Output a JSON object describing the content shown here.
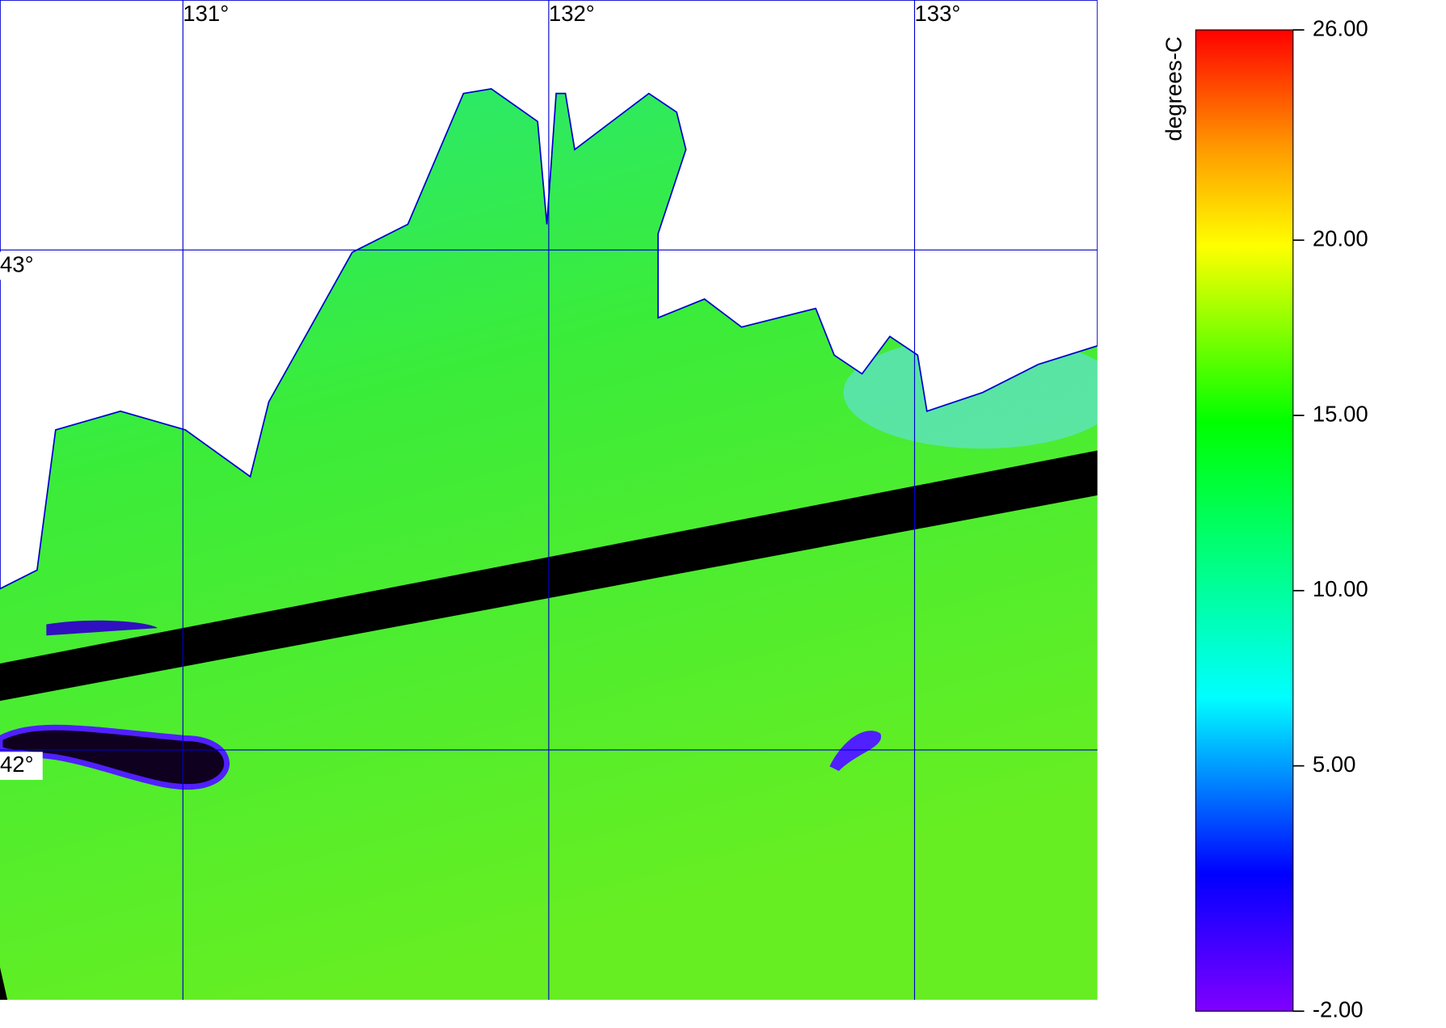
{
  "map": {
    "lon_ticks": [
      {
        "value": 131,
        "label": "131°"
      },
      {
        "value": 132,
        "label": "132°"
      },
      {
        "value": 133,
        "label": "133°"
      }
    ],
    "lat_ticks": [
      {
        "value": 43,
        "label": "43°"
      },
      {
        "value": 42,
        "label": "42°"
      }
    ],
    "xlim": [
      130.5,
      133.5
    ],
    "ylim": [
      41.5,
      43.5
    ],
    "grid_color": "#0000cc",
    "colorbar": {
      "label": "degrees-C",
      "lim": [
        -2,
        26
      ],
      "ticks": [
        {
          "value": 26,
          "label": "26.00"
        },
        {
          "value": 20,
          "label": "20.00"
        },
        {
          "value": 15,
          "label": "15.00"
        },
        {
          "value": 10,
          "label": "10.00"
        },
        {
          "value": 5,
          "label": "5.00"
        },
        {
          "value": -2,
          "label": "-2.00"
        }
      ]
    }
  }
}
